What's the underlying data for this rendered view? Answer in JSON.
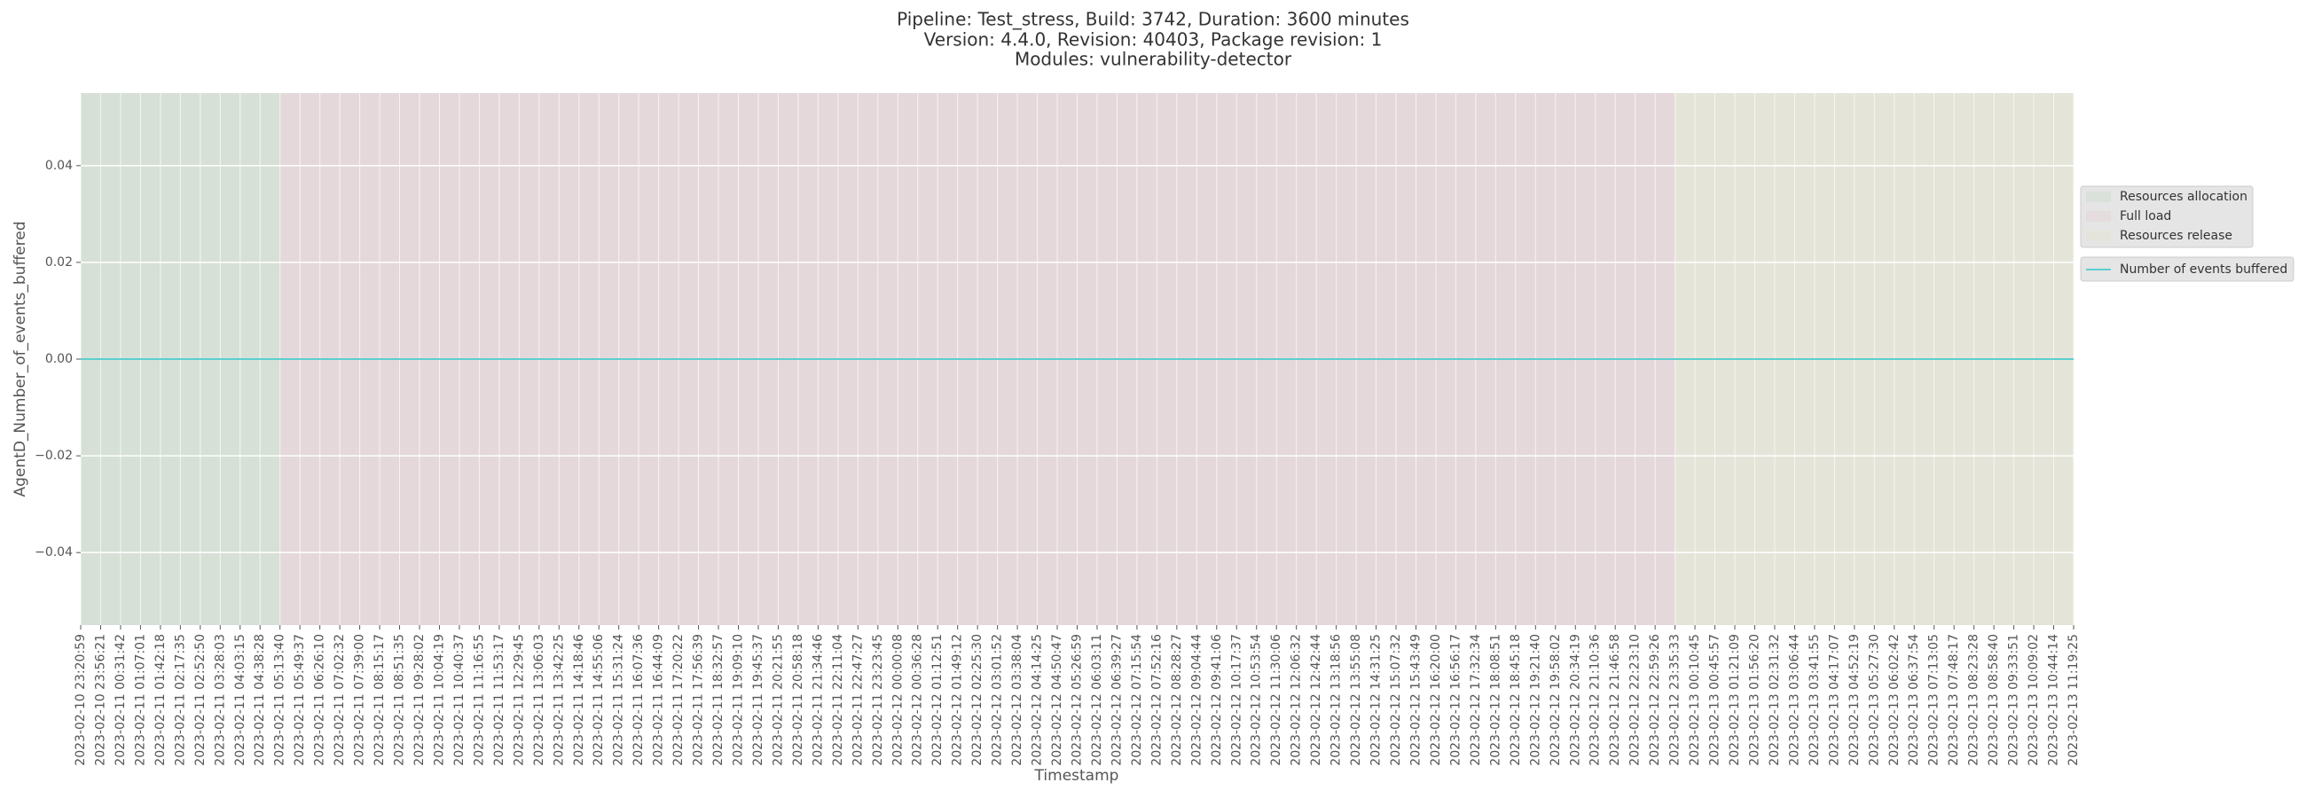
{
  "chart_data": {
    "type": "line",
    "title": [
      "Pipeline: Test_stress, Build: 3742, Duration: 3600 minutes",
      "Version: 4.4.0, Revision: 40403, Package revision: 1",
      "Modules: vulnerability-detector"
    ],
    "x_label": "Timestamp",
    "y_label": "AgentD_Number_of_events_buffered",
    "categories": [
      "2023-02-10 23:20:59",
      "2023-02-10 23:56:21",
      "2023-02-11 00:31:42",
      "2023-02-11 01:07:01",
      "2023-02-11 01:42:18",
      "2023-02-11 02:17:35",
      "2023-02-11 02:52:50",
      "2023-02-11 03:28:03",
      "2023-02-11 04:03:15",
      "2023-02-11 04:38:28",
      "2023-02-11 05:13:40",
      "2023-02-11 05:49:37",
      "2023-02-11 06:26:10",
      "2023-02-11 07:02:32",
      "2023-02-11 07:39:00",
      "2023-02-11 08:15:17",
      "2023-02-11 08:51:35",
      "2023-02-11 09:28:02",
      "2023-02-11 10:04:19",
      "2023-02-11 10:40:37",
      "2023-02-11 11:16:55",
      "2023-02-11 11:53:17",
      "2023-02-11 12:29:45",
      "2023-02-11 13:06:03",
      "2023-02-11 13:42:25",
      "2023-02-11 14:18:46",
      "2023-02-11 14:55:06",
      "2023-02-11 15:31:24",
      "2023-02-11 16:07:36",
      "2023-02-11 16:44:09",
      "2023-02-11 17:20:22",
      "2023-02-11 17:56:39",
      "2023-02-11 18:32:57",
      "2023-02-11 19:09:10",
      "2023-02-11 19:45:37",
      "2023-02-11 20:21:55",
      "2023-02-11 20:58:18",
      "2023-02-11 21:34:46",
      "2023-02-11 22:11:04",
      "2023-02-11 22:47:27",
      "2023-02-11 23:23:45",
      "2023-02-12 00:00:08",
      "2023-02-12 00:36:28",
      "2023-02-12 01:12:51",
      "2023-02-12 01:49:12",
      "2023-02-12 02:25:30",
      "2023-02-12 03:01:52",
      "2023-02-12 03:38:04",
      "2023-02-12 04:14:25",
      "2023-02-12 04:50:47",
      "2023-02-12 05:26:59",
      "2023-02-12 06:03:11",
      "2023-02-12 06:39:27",
      "2023-02-12 07:15:54",
      "2023-02-12 07:52:16",
      "2023-02-12 08:28:27",
      "2023-02-12 09:04:44",
      "2023-02-12 09:41:06",
      "2023-02-12 10:17:37",
      "2023-02-12 10:53:54",
      "2023-02-12 11:30:06",
      "2023-02-12 12:06:32",
      "2023-02-12 12:42:44",
      "2023-02-12 13:18:56",
      "2023-02-12 13:55:08",
      "2023-02-12 14:31:25",
      "2023-02-12 15:07:32",
      "2023-02-12 15:43:49",
      "2023-02-12 16:20:00",
      "2023-02-12 16:56:17",
      "2023-02-12 17:32:34",
      "2023-02-12 18:08:51",
      "2023-02-12 18:45:18",
      "2023-02-12 19:21:40",
      "2023-02-12 19:58:02",
      "2023-02-12 20:34:19",
      "2023-02-12 21:10:36",
      "2023-02-12 21:46:58",
      "2023-02-12 22:23:10",
      "2023-02-12 22:59:26",
      "2023-02-12 23:35:33",
      "2023-02-13 00:10:45",
      "2023-02-13 00:45:57",
      "2023-02-13 01:21:09",
      "2023-02-13 01:56:20",
      "2023-02-13 02:31:32",
      "2023-02-13 03:06:44",
      "2023-02-13 03:41:55",
      "2023-02-13 04:17:07",
      "2023-02-13 04:52:19",
      "2023-02-13 05:27:30",
      "2023-02-13 06:02:42",
      "2023-02-13 06:37:54",
      "2023-02-13 07:13:05",
      "2023-02-13 07:48:17",
      "2023-02-13 08:23:28",
      "2023-02-13 08:58:40",
      "2023-02-13 09:33:51",
      "2023-02-13 10:09:02",
      "2023-02-13 10:44:14",
      "2023-02-13 11:19:25"
    ],
    "phases": [
      {
        "name": "Resources allocation",
        "color": "#d6e0d6",
        "start": "2023-02-10 23:20:59",
        "end": "2023-02-11 05:13:40"
      },
      {
        "name": "Full load",
        "color": "#e4d8da",
        "start": "2023-02-11 05:13:40",
        "end": "2023-02-12 23:35:33"
      },
      {
        "name": "Resources release",
        "color": "#e4e4d8",
        "start": "2023-02-12 23:35:33",
        "end": "2023-02-13 11:19:25"
      }
    ],
    "series": [
      {
        "name": "Number of events buffered",
        "color": "#5ccfcf",
        "values": [
          0,
          0,
          0,
          0,
          0,
          0,
          0,
          0,
          0,
          0,
          0,
          0,
          0,
          0,
          0,
          0,
          0,
          0,
          0,
          0,
          0,
          0,
          0,
          0,
          0,
          0,
          0,
          0,
          0,
          0,
          0,
          0,
          0,
          0,
          0,
          0,
          0,
          0,
          0,
          0,
          0,
          0,
          0,
          0,
          0,
          0,
          0,
          0,
          0,
          0,
          0,
          0,
          0,
          0,
          0,
          0,
          0,
          0,
          0,
          0,
          0,
          0,
          0,
          0,
          0,
          0,
          0,
          0,
          0,
          0,
          0,
          0,
          0,
          0,
          0,
          0,
          0,
          0,
          0,
          0,
          0,
          0,
          0,
          0,
          0,
          0,
          0,
          0,
          0,
          0,
          0,
          0,
          0,
          0,
          0,
          0,
          0,
          0,
          0,
          0,
          0
        ]
      }
    ],
    "ylim": [
      -0.055,
      0.055
    ],
    "yticks": [
      {
        "value": -0.04,
        "label": "−0.04"
      },
      {
        "value": -0.02,
        "label": "−0.02"
      },
      {
        "value": 0,
        "label": "0.00"
      },
      0.02,
      0.04
    ],
    "grid": true,
    "legend": "right"
  }
}
